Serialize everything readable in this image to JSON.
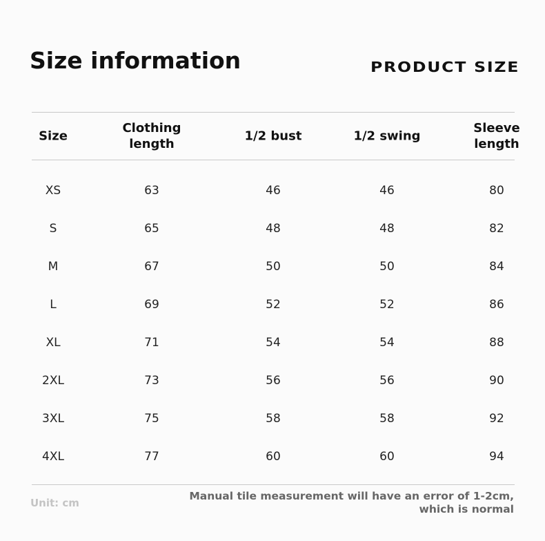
{
  "header": {
    "title": "Size information",
    "subtitle": "PRODUCT SIZE"
  },
  "table": {
    "columns": [
      "Size",
      "Clothing length",
      "1/2 bust",
      "1/2 swing",
      "Sleeve length"
    ],
    "rows": [
      [
        "XS",
        63,
        46,
        46,
        80
      ],
      [
        "S",
        65,
        48,
        48,
        82
      ],
      [
        "M",
        67,
        50,
        50,
        84
      ],
      [
        "L",
        69,
        52,
        52,
        86
      ],
      [
        "XL",
        71,
        54,
        54,
        88
      ],
      [
        "2XL",
        73,
        56,
        56,
        90
      ],
      [
        "3XL",
        75,
        58,
        58,
        92
      ],
      [
        "4XL",
        77,
        60,
        60,
        94
      ]
    ]
  },
  "footer": {
    "unit": "Unit: cm",
    "note": "Manual tile measurement will have an error of 1-2cm, which is normal"
  }
}
